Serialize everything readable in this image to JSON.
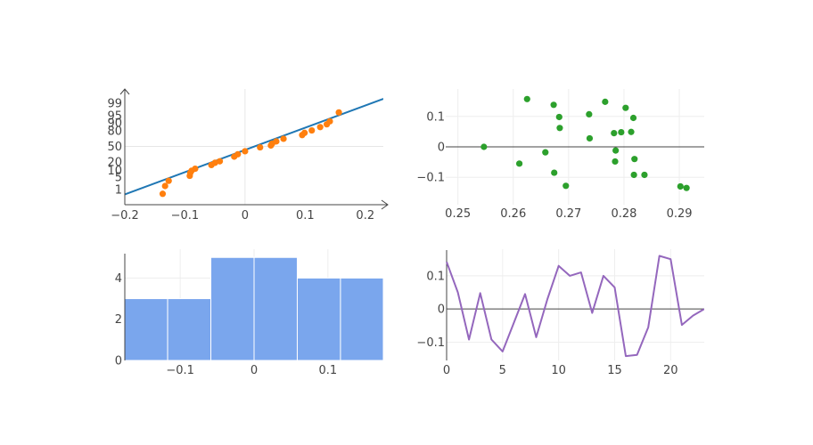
{
  "chart_data": [
    {
      "type": "scatter",
      "subtype": "normal-probability-plot",
      "title": "",
      "x_ticks": [
        "−0.2",
        "−0.1",
        "0",
        "0.1",
        "0.2"
      ],
      "y_ticks": [
        "1",
        "5",
        "10",
        "20",
        "50",
        "80",
        "90",
        "95",
        "99"
      ],
      "y_tick_values": [
        1,
        5,
        10,
        20,
        50,
        80,
        90,
        95,
        99
      ],
      "xlim": [
        -0.2,
        0.23
      ],
      "ylim_z": [
        -2.8,
        2.85
      ],
      "y_scale": "normal-probability",
      "grid": "x=0 and y=50 reference lines only",
      "marker_color": "#ff7f0e",
      "line_color": "#1f77b4",
      "fit_line": {
        "x": [
          -0.2,
          0.23
        ],
        "z": [
          -2.58,
          2.56
        ]
      },
      "points": [
        [
          -0.137,
          -2.55
        ],
        [
          -0.133,
          -2.13
        ],
        [
          -0.127,
          -1.85
        ],
        [
          -0.092,
          -1.58
        ],
        [
          -0.091,
          -1.42
        ],
        [
          -0.089,
          -1.31
        ],
        [
          -0.083,
          -1.2
        ],
        [
          -0.056,
          -1.0
        ],
        [
          -0.05,
          -0.88
        ],
        [
          -0.042,
          -0.8
        ],
        [
          -0.018,
          -0.55
        ],
        [
          -0.012,
          -0.42
        ],
        [
          0.0,
          -0.26
        ],
        [
          0.025,
          -0.05
        ],
        [
          0.043,
          0.05
        ],
        [
          0.045,
          0.15
        ],
        [
          0.052,
          0.27
        ],
        [
          0.064,
          0.41
        ],
        [
          0.095,
          0.61
        ],
        [
          0.099,
          0.73
        ],
        [
          0.111,
          0.86
        ],
        [
          0.125,
          1.04
        ],
        [
          0.136,
          1.19
        ],
        [
          0.141,
          1.35
        ],
        [
          0.156,
          1.83
        ]
      ]
    },
    {
      "type": "scatter",
      "title": "",
      "x_ticks": [
        "0.25",
        "0.26",
        "0.27",
        "0.28",
        "0.29"
      ],
      "x_tick_values": [
        0.25,
        0.26,
        0.27,
        0.28,
        0.29
      ],
      "y_ticks": [
        "−0.1",
        "0",
        "0.1"
      ],
      "y_tick_values": [
        -0.1,
        0,
        0.1
      ],
      "xlim": [
        0.2478,
        0.2945
      ],
      "ylim": [
        -0.19,
        0.19
      ],
      "grid": true,
      "marker_color": "#2ca02c",
      "points": [
        [
          0.2547,
          0.0
        ],
        [
          0.2611,
          -0.055
        ],
        [
          0.2625,
          0.157
        ],
        [
          0.2658,
          -0.018
        ],
        [
          0.2673,
          0.138
        ],
        [
          0.2674,
          -0.085
        ],
        [
          0.2683,
          0.098
        ],
        [
          0.2684,
          0.062
        ],
        [
          0.2695,
          -0.128
        ],
        [
          0.2737,
          0.107
        ],
        [
          0.2738,
          0.028
        ],
        [
          0.2766,
          0.148
        ],
        [
          0.2782,
          0.045
        ],
        [
          0.2784,
          -0.048
        ],
        [
          0.2785,
          -0.012
        ],
        [
          0.2795,
          0.048
        ],
        [
          0.2803,
          0.128
        ],
        [
          0.2813,
          0.049
        ],
        [
          0.2817,
          0.095
        ],
        [
          0.2818,
          -0.092
        ],
        [
          0.2819,
          -0.04
        ],
        [
          0.2837,
          -0.092
        ],
        [
          0.2902,
          -0.13
        ],
        [
          0.2913,
          -0.135
        ]
      ]
    },
    {
      "type": "bar",
      "subtype": "histogram",
      "title": "",
      "x_ticks": [
        "−0.1",
        "0",
        "0.1"
      ],
      "x_tick_values": [
        -0.1,
        0,
        0.1
      ],
      "y_ticks": [
        "0",
        "2",
        "4"
      ],
      "y_tick_values": [
        0,
        2,
        4
      ],
      "bin_edges": [
        -0.175,
        -0.117,
        -0.0585,
        0.0,
        0.0585,
        0.117,
        0.175
      ],
      "values": [
        3,
        3,
        5,
        5,
        4,
        4
      ],
      "ylim": [
        0,
        5.4
      ],
      "bar_color": "#7aa6ed"
    },
    {
      "type": "line",
      "title": "",
      "x_ticks": [
        "0",
        "5",
        "10",
        "15",
        "20"
      ],
      "x_tick_values": [
        0,
        5,
        10,
        15,
        20
      ],
      "y_ticks": [
        "−0.1",
        "0",
        "0.1"
      ],
      "y_tick_values": [
        -0.1,
        0,
        0.1
      ],
      "xlim": [
        0,
        23
      ],
      "ylim": [
        -0.155,
        0.18
      ],
      "grid": true,
      "line_color": "#9467bd",
      "x": [
        0,
        1,
        2,
        3,
        4,
        5,
        6,
        7,
        8,
        9,
        10,
        11,
        12,
        13,
        14,
        15,
        16,
        17,
        18,
        19,
        20,
        21,
        22,
        23
      ],
      "values": [
        0.142,
        0.05,
        -0.092,
        0.048,
        -0.092,
        -0.128,
        -0.042,
        0.045,
        -0.085,
        0.03,
        0.13,
        0.1,
        0.11,
        -0.012,
        0.1,
        0.065,
        -0.142,
        -0.138,
        -0.055,
        0.16,
        0.15,
        -0.048,
        -0.02,
        0.0
      ]
    }
  ]
}
